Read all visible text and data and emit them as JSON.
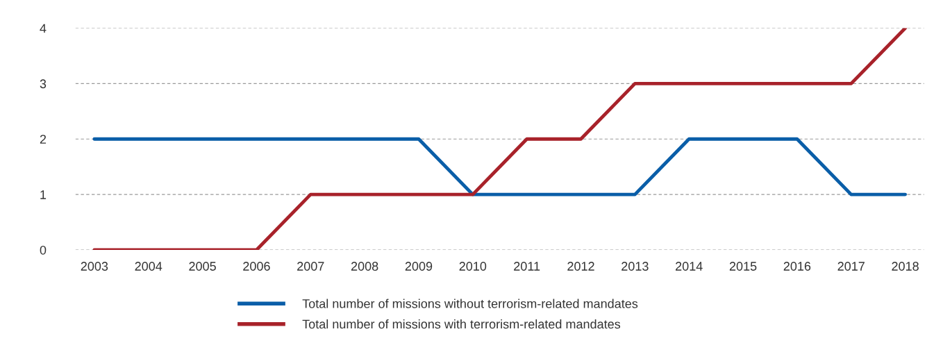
{
  "chart_data": {
    "type": "line",
    "categories": [
      "2003",
      "2004",
      "2005",
      "2006",
      "2007",
      "2008",
      "2009",
      "2010",
      "2011",
      "2012",
      "2013",
      "2014",
      "2015",
      "2016",
      "2017",
      "2018"
    ],
    "series": [
      {
        "name": "Total number of missions without terrorism-related mandates",
        "color": "#0a5ea8",
        "values": [
          2,
          2,
          2,
          2,
          2,
          2,
          2,
          1,
          1,
          1,
          1,
          2,
          2,
          2,
          1,
          1
        ]
      },
      {
        "name": "Total number of missions with terrorism-related mandates",
        "color": "#a8222a",
        "values": [
          0,
          0,
          0,
          0,
          1,
          1,
          1,
          1,
          2,
          2,
          3,
          3,
          3,
          3,
          3,
          4
        ]
      }
    ],
    "ylim": [
      0,
      4
    ],
    "yticks": [
      0,
      1,
      2,
      3,
      4
    ],
    "grid": "y",
    "legend": "bottom",
    "line_style": "solid",
    "marker": "none"
  }
}
